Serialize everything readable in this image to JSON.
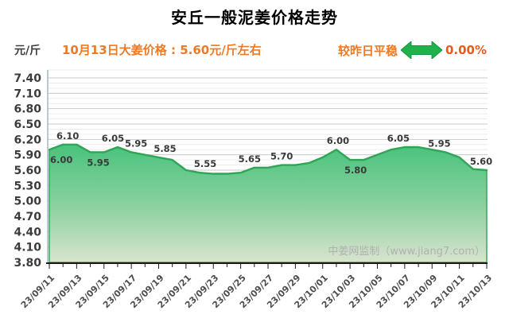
{
  "title": "安丘一般泥姜价格走势",
  "header": {
    "unit_label": "元/斤",
    "subtitle": "10月13日大姜价格 : 5.60元/斤左右",
    "change_label": "较昨日平稳",
    "change_pct": "0.00%",
    "arrow_icon": "flat-double-arrow"
  },
  "watermark": "中姜网监制（www.jiang7.com）",
  "colors": {
    "title": "#000000",
    "subtitle_orange": "#ed7a26",
    "pct_orange_red": "#ea5a1c",
    "arrow_green": "#21b14c",
    "line_green": "#2fa555",
    "fill_top": "#49c27c",
    "fill_bottom": "#d9e4cf",
    "axis_left": "#a3b9c6",
    "axis_bottom": "#1a1a1a",
    "grid_major": "#c9c9c9",
    "grid_minor": "#ececec",
    "tick_label": "#3c3c3c",
    "data_label": "#3a3a3a",
    "watermark_gray": "#b0b0b0"
  },
  "chart_data": {
    "type": "area",
    "title": "安丘一般泥姜价格走势",
    "ylabel": "元/斤",
    "ylim": [
      3.8,
      7.4
    ],
    "ytick_step": 0.3,
    "ytick_minor_step": 0.1,
    "grid": "horizontal",
    "legend_position": "none",
    "x_labels": [
      "23/09/11",
      "23/09/13",
      "23/09/15",
      "23/09/17",
      "23/09/19",
      "23/09/21",
      "23/09/23",
      "23/09/25",
      "23/09/27",
      "23/09/29",
      "23/10/01",
      "23/10/03",
      "23/10/05",
      "23/10/07",
      "23/10/09",
      "23/10/11",
      "23/10/13"
    ],
    "x_label_every_n_points": 2,
    "series": [
      {
        "name": "安丘一般泥姜价格",
        "values": [
          6.0,
          6.1,
          6.1,
          5.95,
          5.95,
          6.05,
          5.95,
          5.9,
          5.85,
          5.8,
          5.6,
          5.55,
          5.53,
          5.53,
          5.55,
          5.65,
          5.65,
          5.7,
          5.7,
          5.74,
          5.85,
          6.0,
          5.8,
          5.8,
          5.9,
          6.0,
          6.05,
          6.05,
          6.0,
          5.95,
          5.85,
          5.62,
          5.6
        ]
      }
    ],
    "point_labels": [
      {
        "index": 0,
        "text": "6.00",
        "pos": "below",
        "anchor": "start",
        "dx": 1
      },
      {
        "index": 1,
        "text": "6.10",
        "pos": "above",
        "dx": 6
      },
      {
        "index": 3,
        "text": "5.95",
        "pos": "below",
        "dx": 10
      },
      {
        "index": 5,
        "text": "6.05",
        "pos": "above",
        "dx": -6
      },
      {
        "index": 6,
        "text": "5.95",
        "pos": "above",
        "dx": 6
      },
      {
        "index": 8,
        "text": "5.85",
        "pos": "above",
        "dx": 8
      },
      {
        "index": 11,
        "text": "5.55",
        "pos": "above",
        "dx": 7
      },
      {
        "index": 15,
        "text": "5.65",
        "pos": "above",
        "dx": -6
      },
      {
        "index": 17,
        "text": "5.70",
        "pos": "above",
        "dx": 0
      },
      {
        "index": 21,
        "text": "6.00",
        "pos": "above",
        "dx": 2
      },
      {
        "index": 22,
        "text": "5.80",
        "pos": "below",
        "dx": 7
      },
      {
        "index": 26,
        "text": "6.05",
        "pos": "above",
        "dx": -8
      },
      {
        "index": 29,
        "text": "5.95",
        "pos": "above",
        "dx": -8
      },
      {
        "index": 32,
        "text": "5.60",
        "pos": "above",
        "dx": -7
      }
    ]
  }
}
